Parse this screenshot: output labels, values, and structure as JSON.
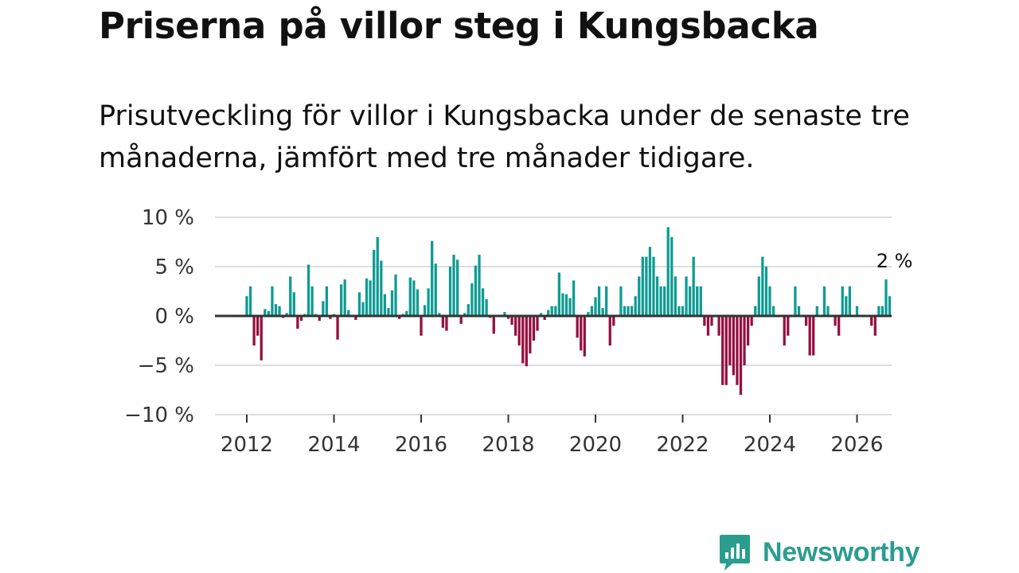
{
  "title": "Priserna på villor steg i Kungsbacka",
  "subtitle": "Prisutveckling för villor i Kungsbacka under de senaste tre månaderna, jämfört med tre månader tidigare.",
  "brand": {
    "name": "Newsworthy",
    "icon": "chart-bubble-icon"
  },
  "colors": {
    "positive": "#0f9b93",
    "negative": "#94103f",
    "grid": "#dddddd",
    "zero": "#333333",
    "brand": "#2a9d8f"
  },
  "chart_data": {
    "type": "bar",
    "title": "Priserna på villor steg i Kungsbacka",
    "xlabel": "",
    "ylabel": "",
    "ylim": [
      -10,
      10
    ],
    "y_ticks": [
      {
        "value": 10,
        "label": "10 %"
      },
      {
        "value": 5,
        "label": "5 %"
      },
      {
        "value": 0,
        "label": "0 %"
      },
      {
        "value": -5,
        "label": "−5 %"
      },
      {
        "value": -10,
        "label": "−10 %"
      }
    ],
    "x_ticks": [
      {
        "value": 2012,
        "label": "2012"
      },
      {
        "value": 2014,
        "label": "2014"
      },
      {
        "value": 2016,
        "label": "2016"
      },
      {
        "value": 2018,
        "label": "2018"
      },
      {
        "value": 2020,
        "label": "2020"
      },
      {
        "value": 2022,
        "label": "2022"
      },
      {
        "value": 2024,
        "label": "2024"
      },
      {
        "value": 2026,
        "label": "2026"
      }
    ],
    "start": {
      "year": 2012,
      "month": 1
    },
    "frequency": "monthly",
    "values": [
      2,
      3,
      -3,
      -2,
      -4.5,
      0.7,
      0.5,
      3,
      1.2,
      1,
      -0.2,
      0.3,
      4,
      2.4,
      -1.3,
      -0.5,
      0.2,
      5.2,
      3,
      0.2,
      -0.5,
      1.5,
      3,
      -0.3,
      0.2,
      -2.4,
      3.2,
      3.7,
      0.6,
      0,
      -0.4,
      2.4,
      1.4,
      3.8,
      3.6,
      6.7,
      8,
      5.6,
      2.2,
      0.8,
      2.6,
      4.2,
      -0.3,
      0.2,
      0.5,
      3.9,
      3.6,
      2.7,
      -2,
      1.1,
      2.8,
      7.6,
      5.3,
      0.3,
      -1.2,
      -1.5,
      5,
      6.2,
      5.7,
      -0.8,
      0.3,
      1.2,
      3.3,
      5.1,
      6.2,
      2.8,
      1.7,
      -0.2,
      -1.8,
      0,
      0,
      0.4,
      -0.3,
      -0.9,
      -2,
      -3,
      -4.8,
      -5.1,
      -3.8,
      -2.5,
      -1.5,
      0.3,
      -0.4,
      0.6,
      1,
      1,
      4.4,
      2.3,
      2.2,
      1.8,
      3.6,
      -2.2,
      -3.5,
      -4.1,
      0.4,
      1,
      1.9,
      3,
      0.8,
      3,
      -3,
      -1,
      0,
      3,
      1,
      1,
      1,
      2,
      4,
      6,
      6,
      7,
      6,
      4,
      3,
      3,
      9,
      8,
      4,
      1,
      1,
      4,
      3,
      6,
      3,
      3,
      -1,
      -2,
      -1,
      0,
      -2,
      -7,
      -7,
      -5,
      -6,
      -7,
      -8,
      -5,
      -3,
      -1,
      1,
      4,
      6,
      5,
      3,
      1,
      0,
      0,
      -3,
      -2,
      0,
      3,
      1,
      0,
      -1,
      -4,
      -4,
      1,
      0,
      3,
      1,
      0,
      -1,
      -2,
      3,
      2,
      3,
      0,
      1,
      0,
      0,
      0,
      -1,
      -2,
      1,
      1,
      3.7,
      2
    ],
    "annotation": {
      "text": "2 %",
      "at": "last"
    }
  }
}
